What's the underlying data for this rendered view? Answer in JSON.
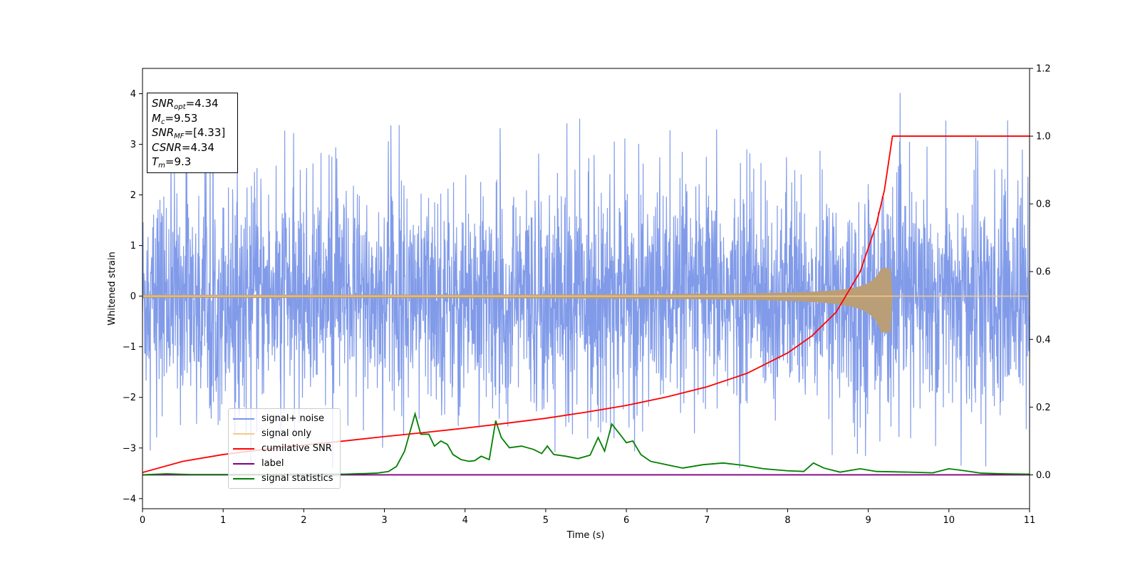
{
  "chart_data": {
    "type": "line",
    "xlabel": "Time (s)",
    "ylabel": "Whitened strain",
    "xlim": [
      0,
      11
    ],
    "ylim": [
      -4.2,
      4.5
    ],
    "y2lim": [
      -0.1,
      1.2
    ],
    "xticks": [
      "0",
      "1",
      "2",
      "3",
      "4",
      "5",
      "6",
      "7",
      "8",
      "9",
      "10",
      "11"
    ],
    "yticks": [
      "4",
      "3",
      "2",
      "1",
      "0",
      "−1",
      "−2",
      "−3",
      "−4"
    ],
    "y2ticks": [
      "1.2",
      "1.0",
      "0.8",
      "0.6",
      "0.4",
      "0.2",
      "0.0"
    ],
    "annotation": {
      "snr_opt": "=4.34",
      "mc": "=9.53",
      "snr_mf": "=[4.33]",
      "csnr": "=4.34",
      "tm": "=9.3"
    },
    "legend_position": "lower-left",
    "series": [
      {
        "name": "signal+ noise",
        "axis": "left",
        "color": "#7a96e8",
        "description_range": [
          -3.4,
          4.2
        ]
      },
      {
        "name": "signal only",
        "axis": "left",
        "color": "#c4a07a",
        "merger_time": 9.3,
        "peak_amplitude": 0.55
      },
      {
        "name": "cumilative SNR",
        "axis": "right",
        "color": "#ff0000",
        "x": [
          0,
          0.5,
          1,
          1.5,
          2,
          2.5,
          3,
          3.5,
          4,
          4.5,
          5,
          5.5,
          6,
          6.5,
          7,
          7.5,
          8,
          8.3,
          8.6,
          8.9,
          9.1,
          9.2,
          9.3,
          9.5,
          10,
          11
        ],
        "values": [
          0.007,
          0.04,
          0.06,
          0.075,
          0.088,
          0.1,
          0.113,
          0.125,
          0.138,
          0.152,
          0.167,
          0.185,
          0.205,
          0.23,
          0.26,
          0.3,
          0.36,
          0.41,
          0.48,
          0.6,
          0.74,
          0.84,
          1.0,
          1.0,
          1.0,
          1.0
        ]
      },
      {
        "name": "label",
        "axis": "right",
        "color": "#800080",
        "x": [
          0,
          11
        ],
        "values": [
          0.0,
          0.0
        ]
      },
      {
        "name": "signal statistics",
        "axis": "right",
        "color": "#008000",
        "x": [
          0,
          0.3,
          0.6,
          1,
          1.5,
          2,
          2.5,
          2.9,
          3.05,
          3.15,
          3.25,
          3.38,
          3.45,
          3.55,
          3.62,
          3.7,
          3.78,
          3.85,
          3.95,
          4.05,
          4.12,
          4.2,
          4.3,
          4.38,
          4.45,
          4.55,
          4.7,
          4.85,
          4.95,
          5.02,
          5.1,
          5.25,
          5.4,
          5.55,
          5.65,
          5.73,
          5.82,
          5.92,
          6.0,
          6.08,
          6.18,
          6.3,
          6.5,
          6.7,
          6.95,
          7.2,
          7.45,
          7.7,
          8.0,
          8.2,
          8.32,
          8.45,
          8.65,
          8.9,
          9.1,
          9.5,
          9.8,
          10.0,
          10.2,
          10.4,
          10.7,
          11
        ],
        "values": [
          0.0,
          0.003,
          0.001,
          0.001,
          0.001,
          0.002,
          0.002,
          0.005,
          0.01,
          0.025,
          0.07,
          0.18,
          0.12,
          0.12,
          0.085,
          0.1,
          0.09,
          0.06,
          0.045,
          0.04,
          0.042,
          0.055,
          0.045,
          0.16,
          0.11,
          0.08,
          0.085,
          0.075,
          0.063,
          0.085,
          0.06,
          0.055,
          0.048,
          0.058,
          0.11,
          0.07,
          0.15,
          0.12,
          0.095,
          0.1,
          0.06,
          0.04,
          0.03,
          0.02,
          0.03,
          0.035,
          0.028,
          0.018,
          0.012,
          0.01,
          0.035,
          0.02,
          0.008,
          0.018,
          0.01,
          0.008,
          0.006,
          0.018,
          0.012,
          0.005,
          0.003,
          0.002
        ]
      }
    ]
  }
}
